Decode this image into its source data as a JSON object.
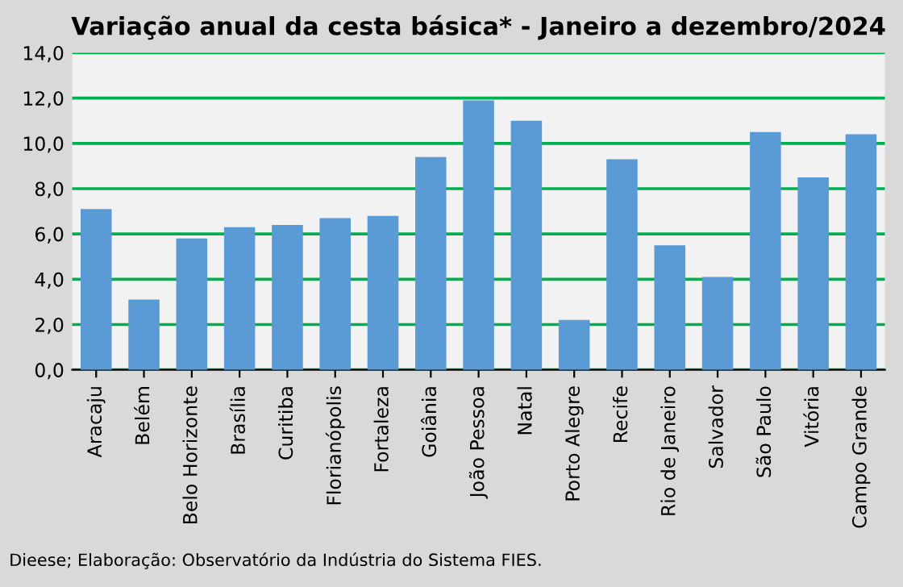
{
  "chart_data": {
    "type": "bar",
    "title": "Variação anual da cesta básica* - Janeiro a dezembro/2024",
    "categories": [
      "Aracaju",
      "Belém",
      "Belo Horizonte",
      "Brasília",
      "Curitiba",
      "Florianópolis",
      "Fortaleza",
      "Goiânia",
      "João Pessoa",
      "Natal",
      "Porto Alegre",
      "Recife",
      "Rio de Janeiro",
      "Salvador",
      "São Paulo",
      "Vitória",
      "Campo Grande"
    ],
    "values": [
      7.1,
      3.1,
      5.8,
      6.3,
      6.4,
      6.7,
      6.8,
      9.4,
      11.9,
      11.0,
      2.2,
      9.3,
      5.5,
      4.1,
      10.5,
      8.5,
      10.4
    ],
    "color": "#5b9bd5",
    "ylim": [
      0,
      14
    ],
    "yticks": [
      {
        "value": 0,
        "label": "0,0"
      },
      {
        "value": 2,
        "label": "2,0"
      },
      {
        "value": 4,
        "label": "4,0"
      },
      {
        "value": 6,
        "label": "6,0"
      },
      {
        "value": 8,
        "label": "8,0"
      },
      {
        "value": 10,
        "label": "10,0"
      },
      {
        "value": 12,
        "label": "12,0"
      },
      {
        "value": 14,
        "label": "14,0"
      }
    ],
    "grid": "y",
    "annotations": [
      "Dieese; Elaboração: Observatório da Indústria do Sistema FIES."
    ]
  }
}
